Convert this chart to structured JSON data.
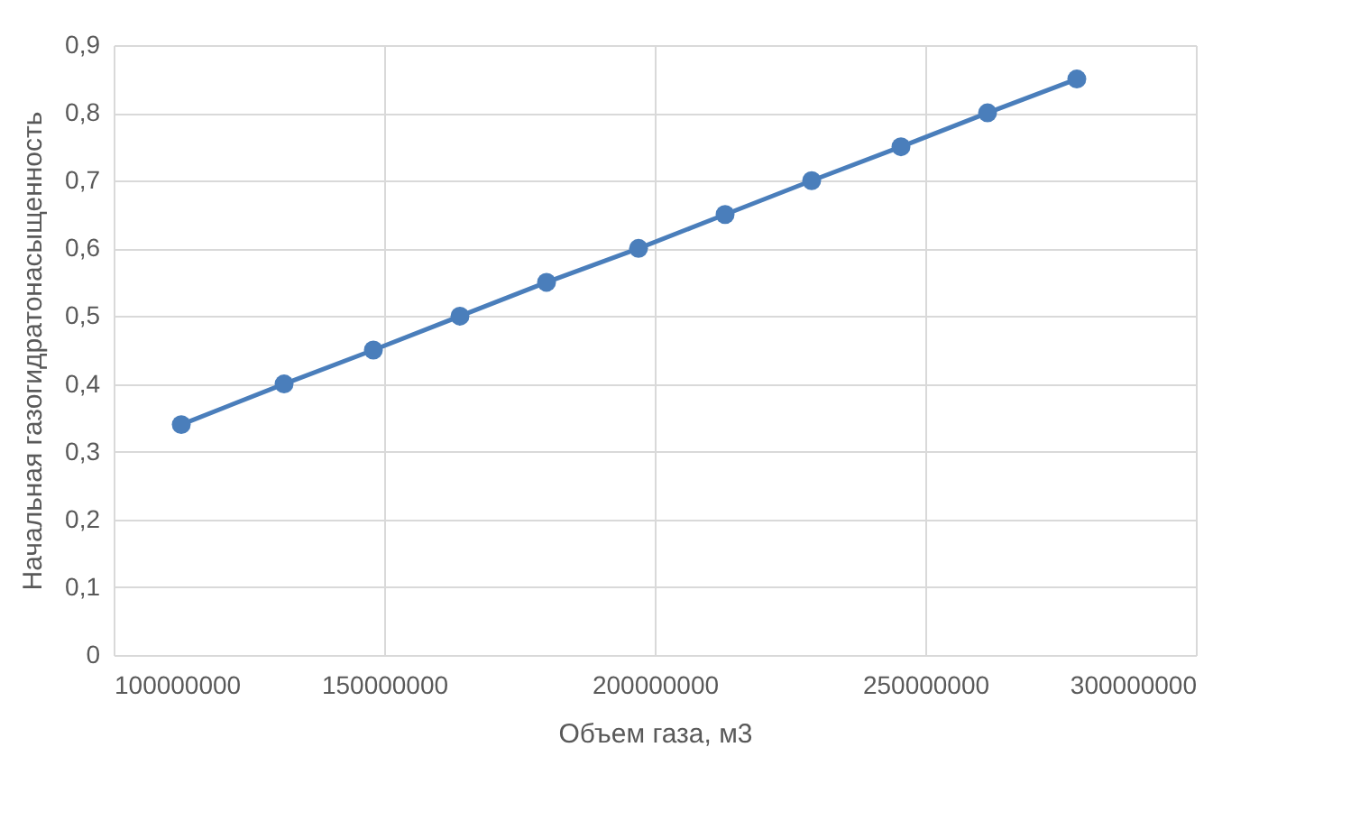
{
  "chart_data": {
    "type": "line",
    "xlabel": "Объем газа, м3",
    "ylabel": "Начальная газогидратонасыщенность",
    "x": [
      112500000,
      131500000,
      148000000,
      164000000,
      180000000,
      197000000,
      213000000,
      229000000,
      245500000,
      261500000,
      278000000
    ],
    "series": [
      {
        "color": "#4a7ebb",
        "values": [
          0.34,
          0.4,
          0.45,
          0.5,
          0.55,
          0.6,
          0.65,
          0.7,
          0.75,
          0.8,
          0.85
        ]
      }
    ],
    "xlim": [
      100000000,
      300000000
    ],
    "xticks": [
      100000000,
      150000000,
      200000000,
      250000000,
      300000000
    ],
    "ylim": [
      0,
      0.9
    ],
    "yticks": [
      {
        "value": 0,
        "label": "0"
      },
      {
        "value": 0.1,
        "label": "0,1"
      },
      {
        "value": 0.2,
        "label": "0,2"
      },
      {
        "value": 0.3,
        "label": "0,3"
      },
      {
        "value": 0.4,
        "label": "0,4"
      },
      {
        "value": 0.5,
        "label": "0,5"
      },
      {
        "value": 0.6,
        "label": "0,6"
      },
      {
        "value": 0.7,
        "label": "0,7"
      },
      {
        "value": 0.8,
        "label": "0,8"
      },
      {
        "value": 0.9,
        "label": "0,9"
      }
    ],
    "grid": true,
    "marker": "circle",
    "line_style": "solid"
  }
}
